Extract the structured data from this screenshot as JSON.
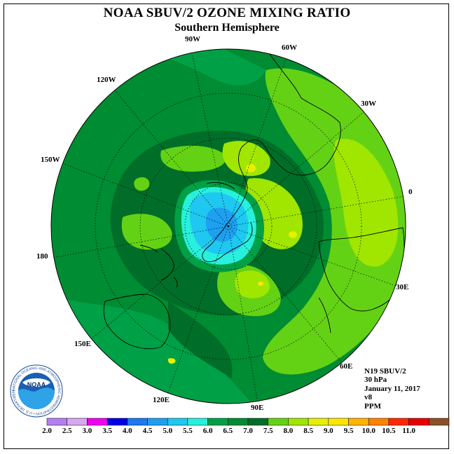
{
  "title": "NOAA SBUV/2 OZONE MIXING RATIO",
  "subtitle": "Southern Hemisphere",
  "longitude_labels": [
    "90W",
    "60W",
    "30W",
    "0",
    "30E",
    "60E",
    "90E",
    "120E",
    "150E",
    "180",
    "150W",
    "120W"
  ],
  "info": {
    "satellite": "N19 SBUV/2",
    "level": "30 hPa",
    "date": "January 11, 2017",
    "version": "v8",
    "units": "PPM"
  },
  "logo": {
    "text": "NOAA",
    "ring_text": "NATIONAL OCEANIC AND ATMOSPHERIC ADMINISTRATION • U.S. DEPARTMENT OF COMMERCE •"
  },
  "colorbar": {
    "ticks": [
      "2.0",
      "2.5",
      "3.0",
      "3.5",
      "4.0",
      "4.5",
      "5.0",
      "5.5",
      "6.0",
      "6.5",
      "7.0",
      "7.5",
      "8.0",
      "8.5",
      "9.0",
      "9.5",
      "10.0",
      "10.5",
      "11.0"
    ],
    "colors": [
      "#b47ff0",
      "#d8a7f2",
      "#f000f0",
      "#0000e6",
      "#1e78f0",
      "#1ea0f0",
      "#1ec8f0",
      "#28f0dc",
      "#00a046",
      "#008c32",
      "#006e28",
      "#64d214",
      "#a0e600",
      "#e6f000",
      "#ffe600",
      "#ffb400",
      "#ff8200",
      "#ff2800",
      "#e60000",
      "#8c5028"
    ]
  },
  "field_levels": [
    {
      "level": "6.0-6.5",
      "color": "#00a046"
    },
    {
      "level": "6.5-7.0",
      "color": "#008c32"
    },
    {
      "level": "7.0-7.5",
      "color": "#006e28"
    },
    {
      "level": "7.5-8.0",
      "color": "#64d214"
    },
    {
      "level": "8.0-8.5",
      "color": "#a0e600"
    },
    {
      "level": "8.5-9.0",
      "color": "#e6f000"
    },
    {
      "level": "5.5-6.0",
      "color": "#28f0dc"
    },
    {
      "level": "5.0-5.5",
      "color": "#1ec8f0"
    },
    {
      "level": "4.5-5.0",
      "color": "#1ea0f0"
    }
  ]
}
